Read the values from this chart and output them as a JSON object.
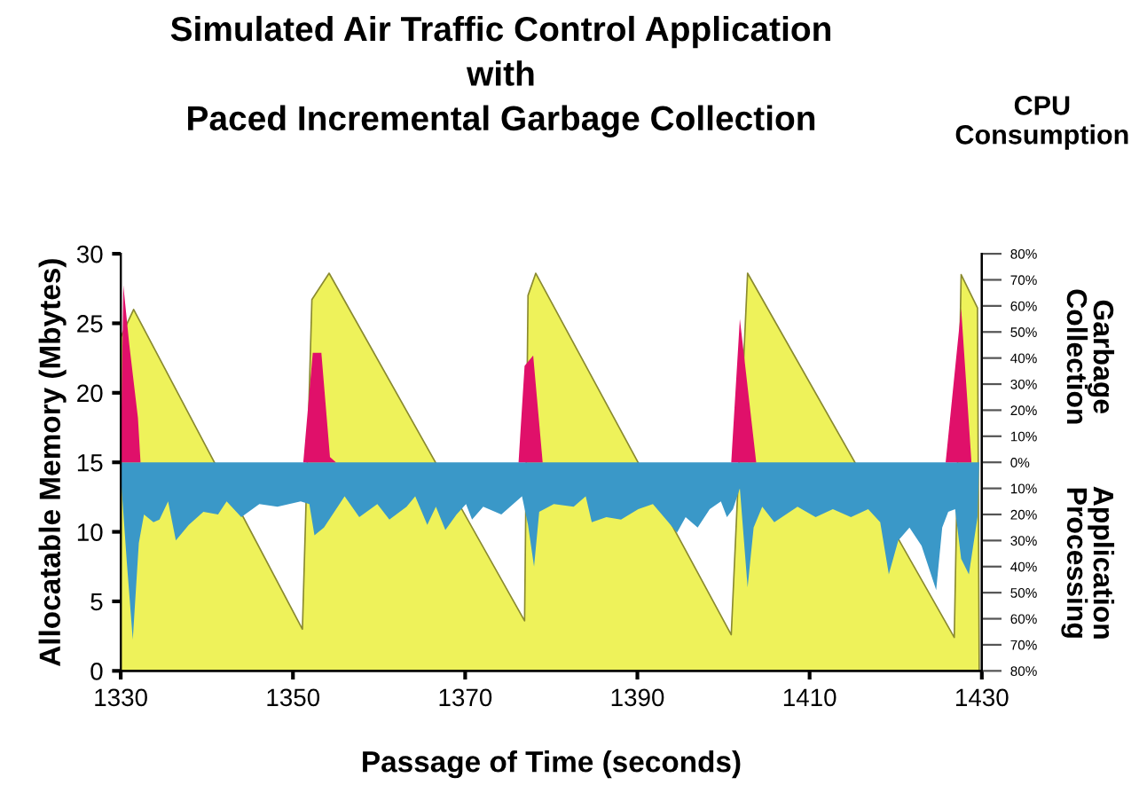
{
  "chart_data": {
    "type": "area",
    "title": "Simulated Air Traffic Control Application\nwith\nPaced Incremental Garbage Collection",
    "xlabel": "Passage of Time (seconds)",
    "ylabel": "Allocatable Memory (Mbytes)",
    "y2label": "CPU\nConsumption",
    "annotations": [
      "Garbage\nCollection",
      "Application\nProcessing"
    ],
    "xlim": [
      1330,
      1430
    ],
    "xticks": [
      1330,
      1350,
      1370,
      1390,
      1410,
      1430
    ],
    "ylim": [
      0,
      30
    ],
    "yticks": [
      0,
      5,
      10,
      15,
      20,
      25,
      30
    ],
    "y2lim": [
      -80,
      80
    ],
    "y2ticks": [
      {
        "value": -80,
        "label": "80%"
      },
      {
        "value": -70,
        "label": "70%"
      },
      {
        "value": -60,
        "label": "60%"
      },
      {
        "value": -50,
        "label": "50%"
      },
      {
        "value": -40,
        "label": "40%"
      },
      {
        "value": -30,
        "label": "30%"
      },
      {
        "value": -20,
        "label": "20%"
      },
      {
        "value": -10,
        "label": "10%"
      },
      {
        "value": 0,
        "label": "0%"
      },
      {
        "value": 10,
        "label": "10%"
      },
      {
        "value": 20,
        "label": "20%"
      },
      {
        "value": 30,
        "label": "30%"
      },
      {
        "value": 40,
        "label": "40%"
      },
      {
        "value": 50,
        "label": "50%"
      },
      {
        "value": 60,
        "label": "60%"
      },
      {
        "value": 70,
        "label": "70%"
      },
      {
        "value": 80,
        "label": "80%"
      }
    ],
    "grid": false,
    "legend": false,
    "series": [
      {
        "color": "#eef25a",
        "x": [
          1330,
          1331.5,
          1351.1,
          1352.2,
          1354.2,
          1376.9,
          1377.3,
          1378.2,
          1400.9,
          1402.8,
          1426.8,
          1427.6,
          1429.5,
          1429.7
        ],
        "values": [
          24,
          26,
          3,
          26.7,
          28.6,
          3.6,
          27,
          28.6,
          2.6,
          28.6,
          2.4,
          28.5,
          26.1,
          0
        ]
      },
      {
        "axis": "y2",
        "color": "#3a98c8",
        "x": [
          1330,
          1330.7,
          1331.4,
          1332.1,
          1332.7,
          1333.8,
          1334.5,
          1335.5,
          1336.4,
          1337.9,
          1339.6,
          1341.3,
          1342.3,
          1344,
          1346.1,
          1348.2,
          1350.9,
          1351.9,
          1352.5,
          1353.6,
          1356,
          1357.7,
          1359.8,
          1361.2,
          1363.2,
          1364.2,
          1365.6,
          1366.6,
          1367.7,
          1369,
          1370.1,
          1370.8,
          1372.1,
          1374.2,
          1376.6,
          1377.3,
          1378,
          1378.6,
          1380.3,
          1382.6,
          1384,
          1384.7,
          1386.4,
          1388.1,
          1390.1,
          1391.8,
          1393.6,
          1394.6,
          1395.6,
          1397,
          1398.4,
          1399.7,
          1400.4,
          1401.1,
          1401.9,
          1402.8,
          1403.5,
          1404.5,
          1405.9,
          1408.6,
          1410.7,
          1412.7,
          1414.8,
          1416.8,
          1418.2,
          1419.2,
          1420.3,
          1421.6,
          1423,
          1424.7,
          1425.4,
          1426.1,
          1426.9,
          1427.6,
          1428.5,
          1429.5,
          1429.7
        ],
        "values": [
          -5,
          -38,
          -68,
          -31,
          -20,
          -23,
          -22,
          -15,
          -30,
          -24,
          -19,
          -20,
          -15,
          -21,
          -16,
          -17,
          -15,
          -16,
          -28,
          -25,
          -13,
          -21,
          -16,
          -22,
          -17,
          -13,
          -24,
          -17,
          -26,
          -20,
          -16,
          -22,
          -17,
          -20,
          -13,
          -24,
          -40,
          -19,
          -16,
          -17,
          -13,
          -23,
          -21,
          -22,
          -18,
          -16,
          -23,
          -27,
          -21,
          -25,
          -18,
          -15,
          -21,
          -18,
          -10,
          -48,
          -25,
          -17,
          -23,
          -17,
          -21,
          -18,
          -21,
          -18,
          -23,
          -43,
          -30,
          -25,
          -32,
          -49,
          -25,
          -19,
          -18,
          -37,
          -43,
          -21,
          0
        ]
      },
      {
        "axis": "y2",
        "color": "#e0106a",
        "x": [
          1330,
          1330.3,
          1331,
          1332,
          1332.3,
          1351.2,
          1352.3,
          1353.3,
          1354.3,
          1355,
          1376.2,
          1376.9,
          1377.9,
          1379,
          1400.9,
          1401.9,
          1403.8,
          1425.8,
          1427.6,
          1428.8
        ],
        "values": [
          0,
          68,
          45,
          17,
          0,
          0,
          42,
          42,
          2,
          0,
          0,
          37,
          41,
          0,
          0,
          55,
          0,
          0,
          59,
          0
        ]
      }
    ]
  }
}
